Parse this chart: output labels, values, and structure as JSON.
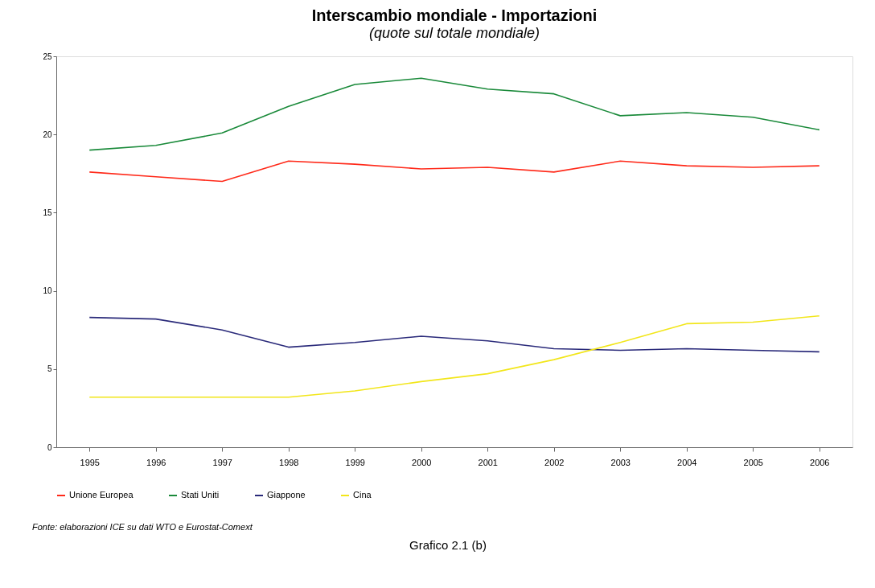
{
  "chart_data": {
    "type": "line",
    "title": "Interscambio mondiale - Importazioni",
    "subtitle": "(quote sul totale mondiale)",
    "categories": [
      "1995",
      "1996",
      "1997",
      "1998",
      "1999",
      "2000",
      "2001",
      "2002",
      "2003",
      "2004",
      "2005",
      "2006"
    ],
    "series": [
      {
        "name": "Unione Europea",
        "color": "#ff2a1a",
        "values": [
          17.6,
          17.3,
          17.0,
          18.3,
          18.1,
          17.8,
          17.9,
          17.6,
          18.3,
          18.0,
          17.9,
          18.0
        ]
      },
      {
        "name": "Stati Uniti",
        "color": "#1a8a3a",
        "values": [
          19.0,
          19.3,
          20.1,
          21.8,
          23.2,
          23.6,
          22.9,
          22.6,
          21.2,
          21.4,
          21.1,
          20.3
        ]
      },
      {
        "name": "Giappone",
        "color": "#2a2a7a",
        "values": [
          8.3,
          8.2,
          7.5,
          6.4,
          6.7,
          7.1,
          6.8,
          6.3,
          6.2,
          6.3,
          6.2,
          6.1
        ]
      },
      {
        "name": "Cina",
        "color": "#f2e61a",
        "values": [
          3.2,
          3.2,
          3.2,
          3.2,
          3.6,
          4.2,
          4.7,
          5.6,
          6.7,
          7.9,
          8.0,
          8.4
        ]
      }
    ],
    "ylim": [
      0,
      25
    ],
    "yticks": [
      0,
      5,
      10,
      15,
      20,
      25
    ],
    "grid": false,
    "legend": "bottom",
    "marker": "none",
    "line_style": "solid",
    "annotations": [
      "Fonte: elaborazioni ICE su dati WTO e Eurostat-Comext",
      "Grafico 2.1 (b)"
    ]
  }
}
